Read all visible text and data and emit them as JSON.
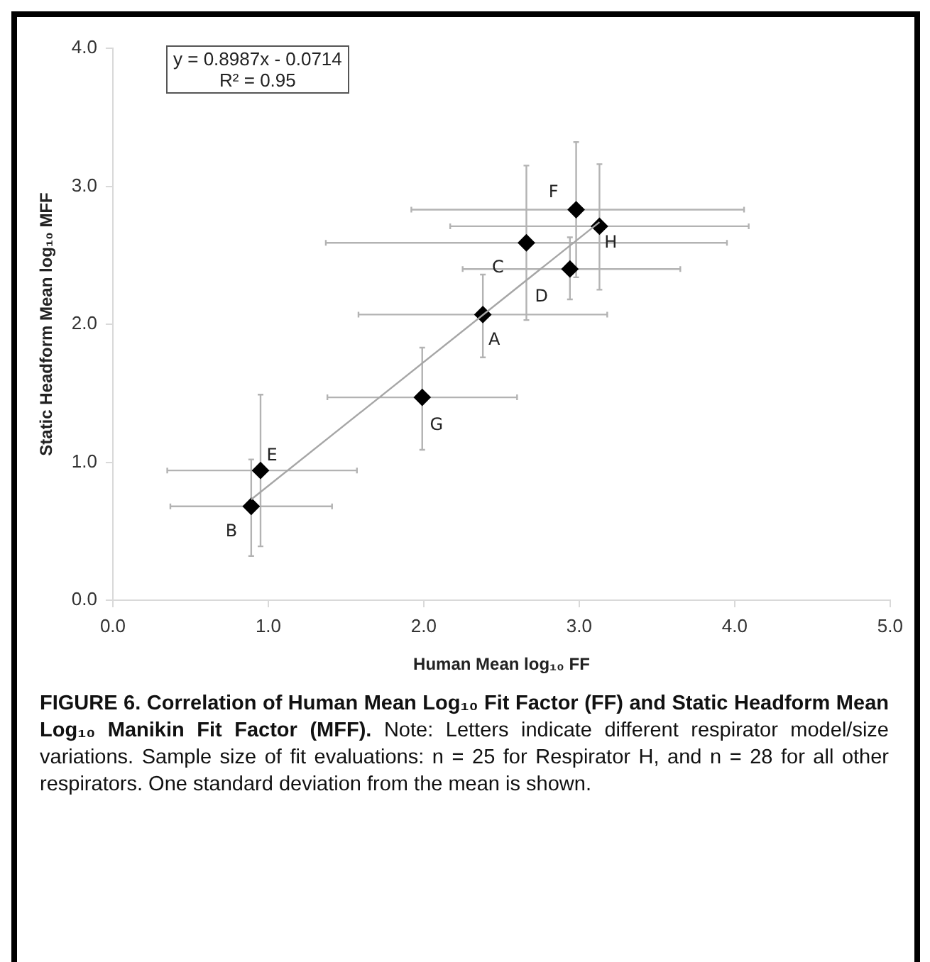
{
  "chart_data": {
    "type": "scatter",
    "title": "FIGURE 6.   Correlation of Human Mean Log₁₀ Fit Factor (FF) and Static Headform Mean Log₁₀ Manikin Fit Factor (MFF).",
    "xlabel": "Human Mean log₁₀ FF",
    "ylabel": "Static Headform Mean log₁₀ MFF",
    "marker": "diamond",
    "xlim": [
      0,
      5
    ],
    "xticks": [
      {
        "value": 0,
        "label": "0.0"
      },
      {
        "value": 1,
        "label": "1.0"
      },
      {
        "value": 2,
        "label": "2.0"
      },
      {
        "value": 3,
        "label": "3.0"
      },
      {
        "value": 4,
        "label": "4.0"
      },
      {
        "value": 5,
        "label": "5.0"
      }
    ],
    "ylim": [
      0,
      4
    ],
    "yticks": [
      {
        "value": 0,
        "label": "0.0"
      },
      {
        "value": 1,
        "label": "1.0"
      },
      {
        "value": 2,
        "label": "2.0"
      },
      {
        "value": 3,
        "label": "3.0"
      },
      {
        "value": 4,
        "label": "4.0"
      }
    ],
    "series": [
      {
        "type": "line",
        "color": "#a6a6a6",
        "x": [
          0.89,
          3.13
        ],
        "values": [
          0.73,
          2.74
        ],
        "marker": "none"
      },
      {
        "name": "A",
        "color": "#000000",
        "x": [
          2.38
        ],
        "values": [
          2.07
        ],
        "errors": [
          [
            1.76,
            2.36
          ]
        ],
        "xerrors": [
          [
            1.58,
            3.18
          ]
        ]
      },
      {
        "name": "B",
        "color": "#000000",
        "x": [
          0.89
        ],
        "values": [
          0.68
        ],
        "errors": [
          [
            0.32,
            1.02
          ]
        ],
        "xerrors": [
          [
            0.37,
            1.41
          ]
        ]
      },
      {
        "name": "C",
        "color": "#000000",
        "x": [
          2.66
        ],
        "values": [
          2.59
        ],
        "errors": [
          [
            2.03,
            3.15
          ]
        ],
        "xerrors": [
          [
            1.37,
            3.95
          ]
        ]
      },
      {
        "name": "D",
        "color": "#000000",
        "x": [
          2.94
        ],
        "values": [
          2.4
        ],
        "errors": [
          [
            2.18,
            2.63
          ]
        ],
        "xerrors": [
          [
            2.25,
            3.65
          ]
        ]
      },
      {
        "name": "E",
        "color": "#000000",
        "x": [
          0.95
        ],
        "values": [
          0.94
        ],
        "errors": [
          [
            0.39,
            1.49
          ]
        ],
        "xerrors": [
          [
            0.35,
            1.57
          ]
        ]
      },
      {
        "name": "F",
        "color": "#000000",
        "x": [
          2.98
        ],
        "values": [
          2.83
        ],
        "errors": [
          [
            2.34,
            3.32
          ]
        ],
        "xerrors": [
          [
            1.92,
            4.06
          ]
        ]
      },
      {
        "name": "G",
        "color": "#000000",
        "x": [
          1.99
        ],
        "values": [
          1.47
        ],
        "errors": [
          [
            1.09,
            1.83
          ]
        ],
        "xerrors": [
          [
            1.38,
            2.6
          ]
        ]
      },
      {
        "name": "H",
        "color": "#000000",
        "x": [
          3.13
        ],
        "values": [
          2.71
        ],
        "errors": [
          [
            2.25,
            3.16
          ]
        ],
        "xerrors": [
          [
            2.17,
            4.09
          ]
        ]
      }
    ],
    "annotations": [
      "y = 0.8987x - 0.0714",
      "R² = 0.95",
      "Note: Letters indicate different respirator model/size variations. Sample size of fit evaluations: n = 25 for Respirator H, and n = 28 for all other respirators. One standard deviation from the mean is shown."
    ]
  }
}
